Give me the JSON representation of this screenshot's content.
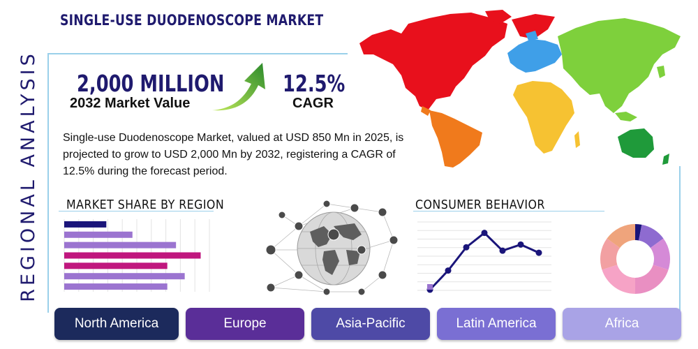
{
  "title": "SINGLE-USE DUODENOSCOPE MARKET",
  "side_title": "REGIONAL ANALYSIS",
  "kpi": {
    "value": "2,000 MILLION",
    "value_label": "2032 Market Value",
    "cagr": "12.5%",
    "cagr_label": "CAGR"
  },
  "description": "Single-use Duodenoscope Market, valued at USD 850 Mn in 2025, is projected to grow to USD 2,000 Mn by 2032, registering a CAGR of 12.5% during the forecast period.",
  "sections": {
    "market_share": "MARKET SHARE BY REGION",
    "consumer_behavior": "CONSUMER BEHAVIOR"
  },
  "regions": [
    {
      "label": "North America",
      "color": "#1c2a5c"
    },
    {
      "label": "Europe",
      "color": "#5a2e98"
    },
    {
      "label": "Asia-Pacific",
      "color": "#4e4aa6"
    },
    {
      "label": "Latin America",
      "color": "#7a6fd3"
    },
    {
      "label": "Africa",
      "color": "#a9a3e6"
    }
  ],
  "icons": {
    "growth_arrow": "growth-arrow-icon",
    "world_map": "world-map-icon",
    "globe": "network-globe-icon"
  },
  "chart_data": [
    {
      "type": "bar",
      "orientation": "horizontal",
      "title": "",
      "values": [
        29,
        47,
        77,
        94,
        71,
        83,
        71
      ],
      "colors": [
        "#1a157a",
        "#9b74d0",
        "#9b74d0",
        "#c0177e",
        "#c0177e",
        "#9b74d0",
        "#9b74d0"
      ],
      "xlim": [
        0,
        100
      ],
      "grid": true
    },
    {
      "type": "line",
      "title": "",
      "x": [
        1,
        2,
        3,
        4,
        5,
        6,
        7
      ],
      "values": [
        1,
        29,
        63,
        84,
        58,
        67,
        55
      ],
      "ylim": [
        0,
        100
      ],
      "grid": true,
      "color": "#1a157a"
    },
    {
      "type": "pie",
      "donut": true,
      "title": "",
      "values": [
        3,
        12,
        15,
        20,
        20,
        15,
        15
      ],
      "colors": [
        "#1a157a",
        "#8e6bd0",
        "#d58ad7",
        "#e98fc2",
        "#f6a3c6",
        "#f2a0a2",
        "#efa47c"
      ]
    }
  ]
}
